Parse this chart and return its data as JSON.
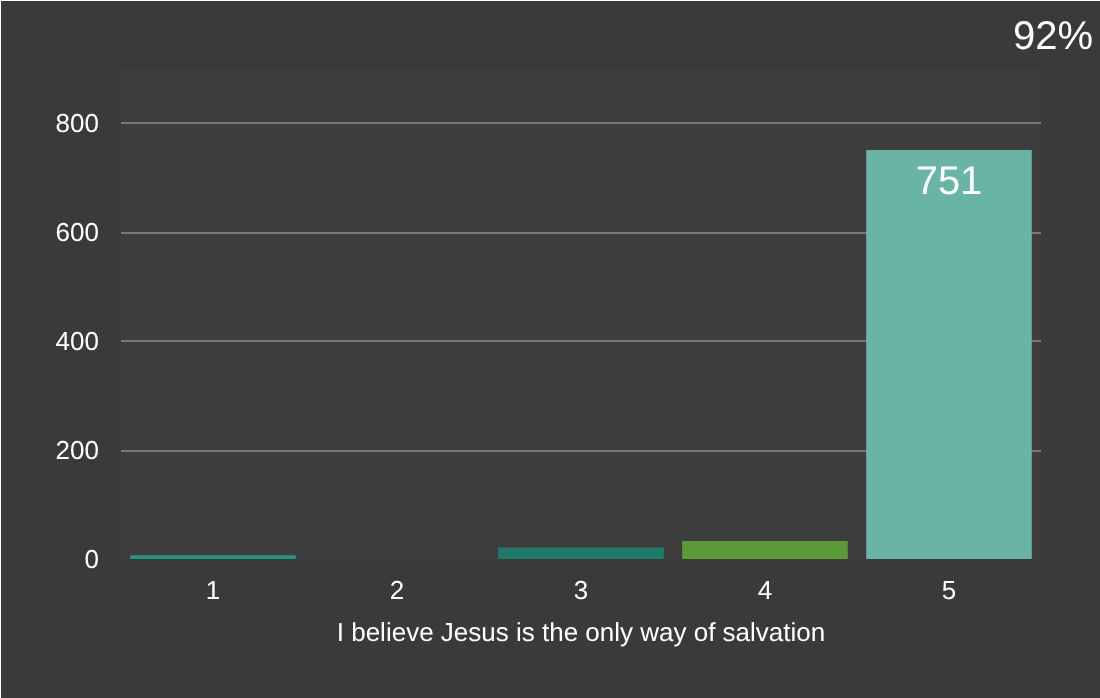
{
  "chart_data": {
    "type": "bar",
    "xlabel": "I believe Jesus is the only way of salvation",
    "categories": [
      "1",
      "2",
      "3",
      "4",
      "5"
    ],
    "values": [
      7,
      0,
      21,
      33,
      751
    ],
    "colors": [
      "#2a9484",
      "#2f6f66",
      "#1f7a6c",
      "#5a9a38",
      "#6ab4a6"
    ],
    "ylim": [
      0,
      900
    ],
    "yticks": [
      0,
      200,
      400,
      600,
      800
    ],
    "grid": "y",
    "value_labels": [
      null,
      null,
      null,
      null,
      "751"
    ],
    "annotations": [
      "92%"
    ]
  }
}
